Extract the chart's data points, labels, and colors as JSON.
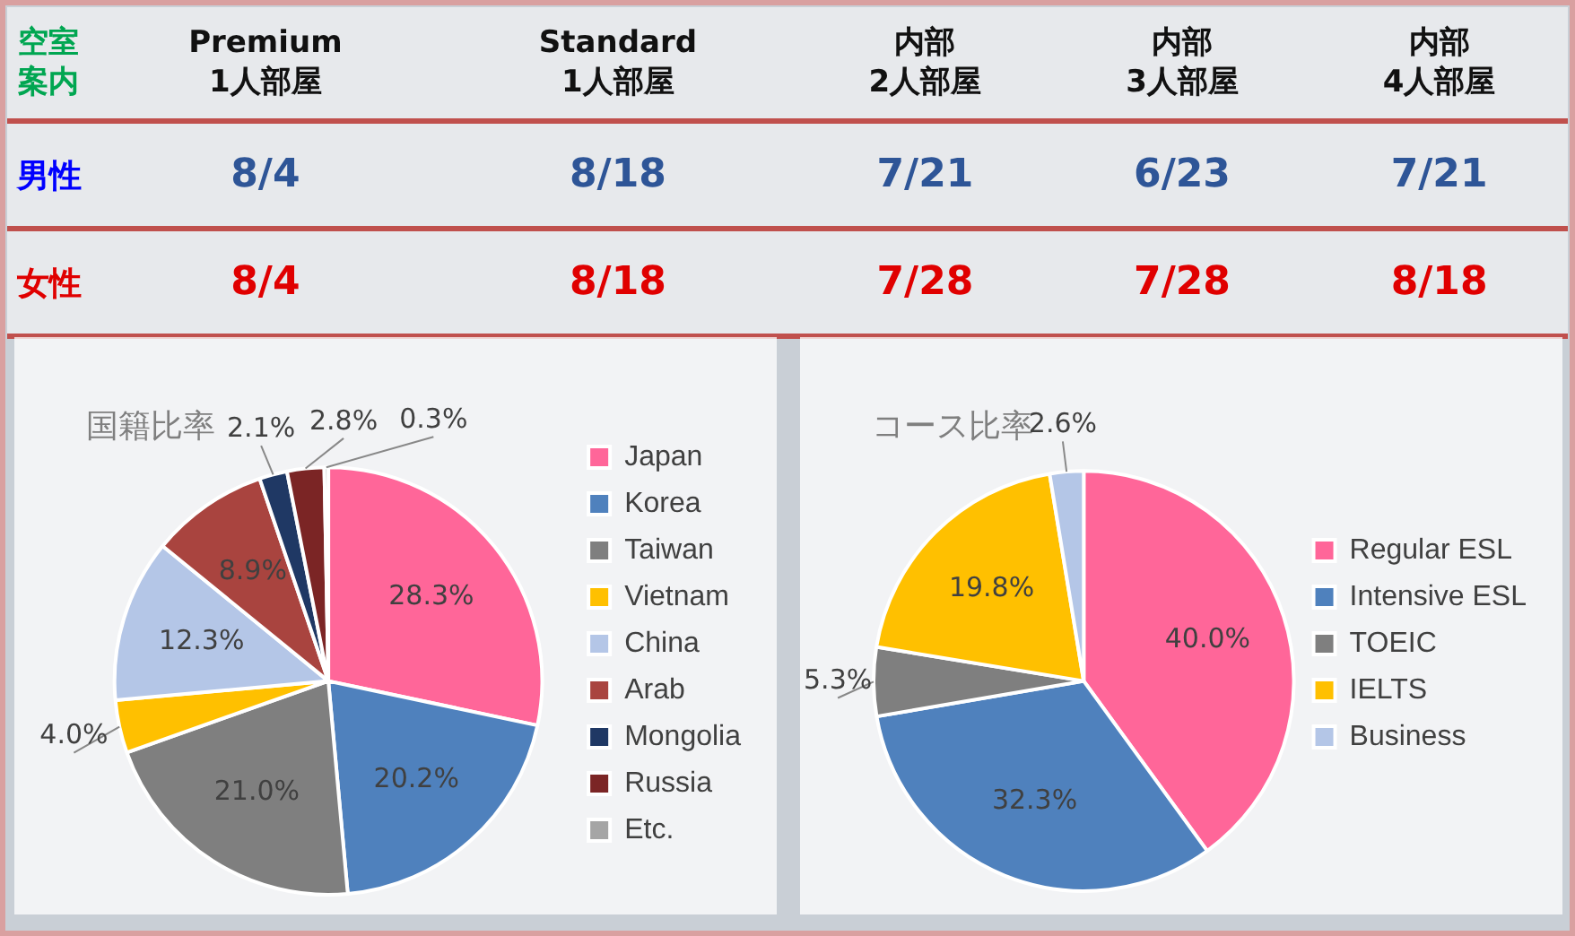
{
  "chart_data": [
    {
      "type": "other",
      "title": "空室案内",
      "categories": [
        "Premium\n1人部屋",
        "Standard\n1人部屋",
        "内部\n2人部屋",
        "内部\n3人部屋",
        "内部\n4人部屋"
      ],
      "y_categories": [
        "男性",
        "女性"
      ],
      "cell_labels": [
        [
          "8/4",
          "8/18",
          "7/21",
          "6/23",
          "7/21"
        ],
        [
          "8/4",
          "8/18",
          "7/28",
          "7/28",
          "8/18"
        ]
      ]
    },
    {
      "type": "pie",
      "title": "国籍比率",
      "categories": [
        "Japan",
        "Korea",
        "Taiwan",
        "Vietnam",
        "China",
        "Arab",
        "Mongolia",
        "Russia",
        "Etc."
      ],
      "values": [
        28.3,
        20.2,
        21.0,
        4.0,
        12.3,
        8.9,
        2.1,
        2.8,
        0.3
      ],
      "value_labels": [
        "28.3%",
        "20.2%",
        "21.0%",
        "4.0%",
        "12.3%",
        "8.9%",
        "2.1%",
        "2.8%",
        "0.3%"
      ],
      "colors": [
        "#ff6699",
        "#4f81bd",
        "#7f7f7f",
        "#ffc000",
        "#b4c6e7",
        "#a9443f",
        "#1f3864",
        "#7b2525",
        "#a5a5a5"
      ],
      "legend": "right"
    },
    {
      "type": "pie",
      "title": "コース比率",
      "categories": [
        "Regular ESL",
        "Intensive ESL",
        "TOEIC",
        "IELTS",
        "Business"
      ],
      "values": [
        40.0,
        32.3,
        5.3,
        19.8,
        2.6
      ],
      "value_labels": [
        "40.0%",
        "32.3%",
        "5.3%",
        "19.8%",
        "2.6%"
      ],
      "colors": [
        "#ff6699",
        "#4f81bd",
        "#7f7f7f",
        "#ffc000",
        "#b4c6e7"
      ],
      "legend": "right"
    }
  ]
}
